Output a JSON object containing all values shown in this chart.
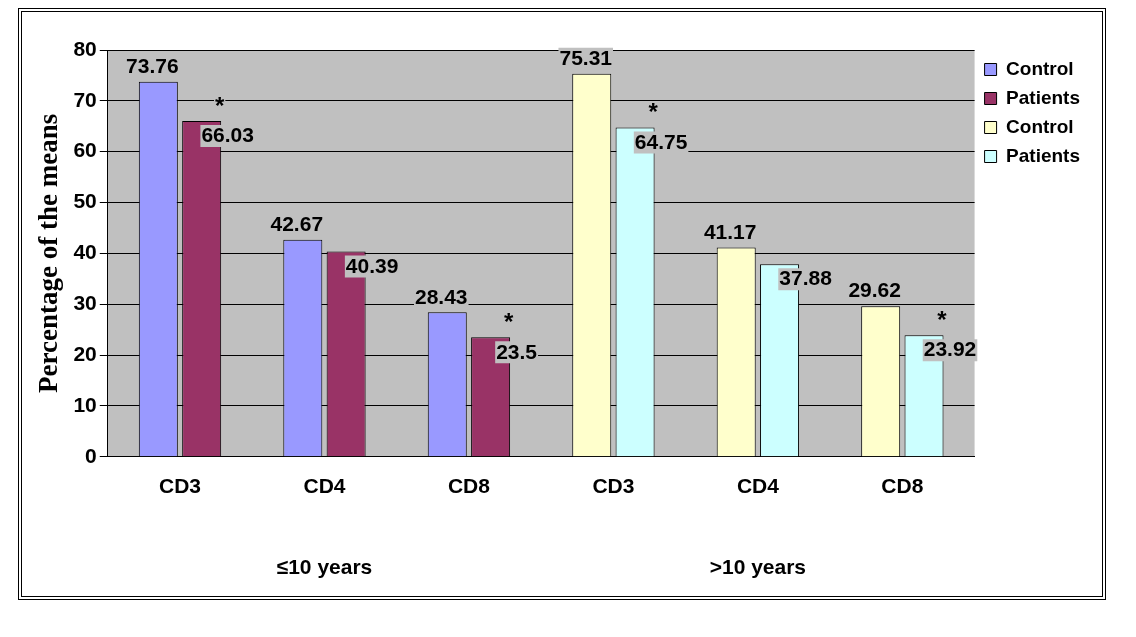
{
  "chart_data": {
    "type": "bar",
    "ylabel": "Percentage of the means",
    "categories": [
      "CD3",
      "CD4",
      "CD8",
      "CD3",
      "CD4",
      "CD8"
    ],
    "series": [
      {
        "name": "Control",
        "color": "#9999ff",
        "values": [
          73.76,
          42.67,
          28.43,
          null,
          null,
          null
        ]
      },
      {
        "name": "Patients",
        "color": "#993366",
        "values": [
          66.03,
          40.39,
          23.5,
          null,
          null,
          null
        ]
      },
      {
        "name": "Control",
        "color": "#ffffcc",
        "values": [
          null,
          null,
          null,
          75.31,
          41.17,
          29.62
        ]
      },
      {
        "name": "Patients",
        "color": "#ccffff",
        "values": [
          null,
          null,
          null,
          64.75,
          37.88,
          23.92
        ]
      }
    ],
    "ylim": [
      0,
      80
    ],
    "yticks": [
      0,
      10,
      20,
      30,
      40,
      50,
      60,
      70,
      80
    ],
    "grid": "y",
    "legend": "top right",
    "data_labels": true,
    "annotations": [
      {
        "text": "*",
        "x": "CD3",
        "y": 66.03
      },
      {
        "text": "*",
        "x": "CD8",
        "y": 23.5
      },
      "*",
      "*",
      "≤10 years",
      ">10 years"
    ]
  }
}
